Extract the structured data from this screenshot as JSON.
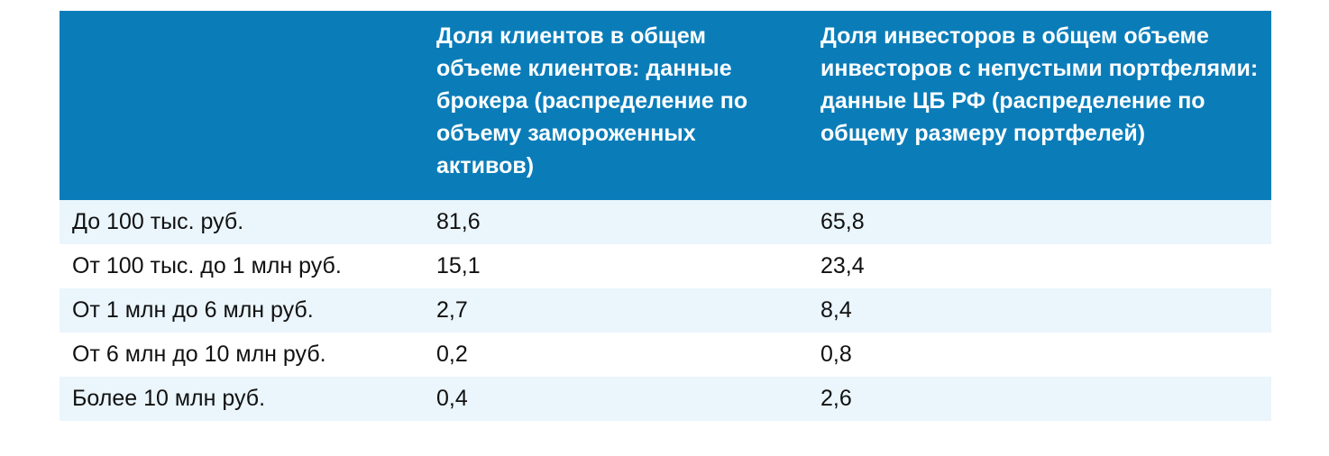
{
  "table": {
    "columns": [
      "Доля клиентов в общем объеме клиентов: данные брокера (распределение по объему замороженных активов)",
      "Доля инвесторов в общем объеме инвесторов с непустыми портфелями: данные ЦБ РФ (распределение по общему размеру портфелей)"
    ],
    "rows": [
      [
        "До 100 тыс. руб.",
        "81,6",
        "65,8"
      ],
      [
        "От 100 тыс. до 1 млн руб.",
        "15,1",
        "23,4"
      ],
      [
        "От 1 млн до 6 млн руб.",
        "2,7",
        "8,4"
      ],
      [
        "От 6 млн до 10 млн руб.",
        "0,2",
        "0,8"
      ],
      [
        "Более 10 млн руб.",
        "0,4",
        "2,6"
      ]
    ]
  }
}
